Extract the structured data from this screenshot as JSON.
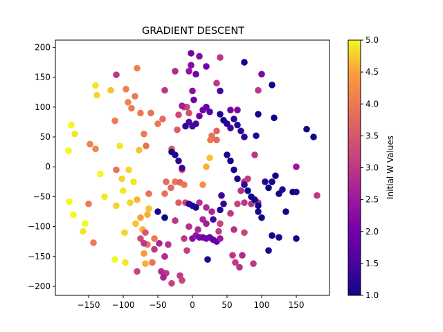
{
  "chart_data": {
    "type": "scatter",
    "title": "GRADIENT DESCENT",
    "xlabel": "",
    "ylabel": "",
    "xlim": [
      -198,
      198
    ],
    "ylim": [
      -215,
      212
    ],
    "xticks": [
      -150,
      -100,
      -50,
      0,
      50,
      100,
      150
    ],
    "xtick_labels": [
      "−150",
      "−100",
      "−50",
      "0",
      "50",
      "100",
      "150"
    ],
    "yticks": [
      -200,
      -150,
      -100,
      -50,
      0,
      50,
      100,
      150,
      200
    ],
    "ytick_labels": [
      "−200",
      "−150",
      "−100",
      "−50",
      "0",
      "50",
      "100",
      "150",
      "200"
    ],
    "grid": false,
    "colormap": "plasma",
    "colorbar": {
      "label": "Initial W Values",
      "range": [
        1.0,
        5.0
      ],
      "ticks": [
        1.0,
        1.5,
        2.0,
        2.5,
        3.0,
        3.5,
        4.0,
        4.5,
        5.0
      ],
      "tick_labels": [
        "1.0",
        "1.5",
        "2.0",
        "2.5",
        "3.0",
        "3.5",
        "4.0",
        "4.5",
        "5.0"
      ]
    },
    "points": [
      [
        -179,
        27,
        5.0
      ],
      [
        -175,
        70,
        5.0
      ],
      [
        -170,
        55,
        4.9
      ],
      [
        -178,
        -58,
        5.0
      ],
      [
        -172,
        -80,
        5.0
      ],
      [
        -158,
        -108,
        4.9
      ],
      [
        -155,
        -95,
        5.0
      ],
      [
        -140,
        136,
        4.9
      ],
      [
        -138,
        120,
        4.8
      ],
      [
        -133,
        -12,
        5.0
      ],
      [
        -127,
        -50,
        4.9
      ],
      [
        -118,
        128,
        4.7
      ],
      [
        -112,
        -155,
        5.0
      ],
      [
        -110,
        -65,
        4.8
      ],
      [
        -105,
        35,
        4.9
      ],
      [
        -102,
        -20,
        4.8
      ],
      [
        -100,
        -40,
        4.9
      ],
      [
        -98,
        -110,
        4.8
      ],
      [
        -97,
        -160,
        4.9
      ],
      [
        -92,
        -5,
        4.8
      ],
      [
        -90,
        -60,
        4.8
      ],
      [
        -85,
        -25,
        4.9
      ],
      [
        -82,
        -95,
        4.7
      ],
      [
        -80,
        -55,
        4.6
      ],
      [
        -75,
        -85,
        4.5
      ],
      [
        -72,
        -105,
        4.6
      ],
      [
        -70,
        -145,
        4.4
      ],
      [
        -68,
        -162,
        4.6
      ],
      [
        -77,
        28,
        4.7
      ],
      [
        -63,
        -70,
        4.7
      ],
      [
        -65,
        -80,
        4.6
      ],
      [
        -148,
        38,
        4.1
      ],
      [
        -140,
        30,
        4.2
      ],
      [
        -150,
        -62,
        4.0
      ],
      [
        -143,
        -127,
        4.0
      ],
      [
        -110,
        -5,
        3.9
      ],
      [
        -112,
        77,
        4.0
      ],
      [
        -96,
        130,
        4.1
      ],
      [
        -93,
        108,
        4.1
      ],
      [
        -88,
        98,
        4.0
      ],
      [
        -83,
        118,
        4.0
      ],
      [
        -80,
        165,
        4.1
      ],
      [
        -75,
        90,
        4.0
      ],
      [
        -70,
        55,
        4.0
      ],
      [
        -67,
        35,
        3.9
      ],
      [
        -63,
        -45,
        3.9
      ],
      [
        -55,
        -120,
        4.0
      ],
      [
        -65,
        -130,
        4.0
      ],
      [
        -58,
        -160,
        3.9
      ],
      [
        -60,
        90,
        3.9
      ],
      [
        -50,
        72,
        4.0
      ],
      [
        -43,
        80,
        3.8
      ],
      [
        -40,
        -45,
        3.9
      ],
      [
        -38,
        -25,
        3.8
      ],
      [
        -31,
        -35,
        3.8
      ],
      [
        -25,
        -25,
        3.9
      ],
      [
        -18,
        -26,
        3.7
      ],
      [
        -12,
        -30,
        4.0
      ],
      [
        -20,
        -60,
        3.6
      ],
      [
        -30,
        30,
        3.6
      ],
      [
        -20,
        87,
        3.3
      ],
      [
        -12,
        100,
        3.3
      ],
      [
        -8,
        100,
        3.2
      ],
      [
        -5,
        90,
        3.4
      ],
      [
        -22,
        62,
        3.6
      ],
      [
        -15,
        -5,
        3.5
      ],
      [
        -10,
        -60,
        3.2
      ],
      [
        -68,
        -110,
        3.5
      ],
      [
        -75,
        -120,
        3.3
      ],
      [
        -70,
        -128,
        3.0
      ],
      [
        -35,
        -130,
        2.9
      ],
      [
        -40,
        -150,
        2.8
      ],
      [
        -55,
        -138,
        3.0
      ],
      [
        -48,
        -128,
        2.7
      ],
      [
        -38,
        -178,
        3.0
      ],
      [
        -30,
        -195,
        3.2
      ],
      [
        -18,
        -182,
        3.1
      ],
      [
        -15,
        -190,
        3.2
      ],
      [
        -8,
        -140,
        3.1
      ],
      [
        -12,
        -120,
        3.0
      ],
      [
        -5,
        -100,
        2.9
      ],
      [
        -25,
        -90,
        3.0
      ],
      [
        -45,
        -175,
        2.8
      ],
      [
        -42,
        -185,
        2.7
      ],
      [
        -80,
        -175,
        3.2
      ],
      [
        -110,
        154,
        3.0
      ],
      [
        -40,
        128,
        3.0
      ],
      [
        -25,
        160,
        2.8
      ],
      [
        -15,
        102,
        2.6
      ],
      [
        10,
        -60,
        2.9
      ],
      [
        20,
        -68,
        2.8
      ],
      [
        28,
        -75,
        2.7
      ],
      [
        15,
        -88,
        2.7
      ],
      [
        20,
        -95,
        2.6
      ],
      [
        8,
        -105,
        2.8
      ],
      [
        0,
        -120,
        2.2
      ],
      [
        5,
        -115,
        2.4
      ],
      [
        10,
        -118,
        2.1
      ],
      [
        15,
        -118,
        2.0
      ],
      [
        20,
        -120,
        2.0
      ],
      [
        25,
        -118,
        1.9
      ],
      [
        30,
        -122,
        1.8
      ],
      [
        35,
        -125,
        1.8
      ],
      [
        40,
        -120,
        2.5
      ],
      [
        20,
        0,
        4.6
      ],
      [
        25,
        15,
        4.7
      ],
      [
        15,
        -30,
        4.3
      ],
      [
        26,
        45,
        4.0
      ],
      [
        28,
        52,
        3.9
      ],
      [
        35,
        60,
        3.7
      ],
      [
        35,
        45,
        3.8
      ],
      [
        40,
        183,
        3.0
      ],
      [
        35,
        140,
        3.0
      ],
      [
        40,
        -95,
        3.2
      ],
      [
        38,
        -108,
        3.1
      ],
      [
        58,
        -148,
        3.0
      ],
      [
        62,
        -160,
        3.1
      ],
      [
        68,
        -168,
        2.9
      ],
      [
        72,
        -148,
        2.8
      ],
      [
        88,
        -162,
        3.0
      ],
      [
        75,
        -110,
        3.2
      ],
      [
        60,
        -105,
        2.9
      ],
      [
        55,
        -78,
        3.0
      ],
      [
        65,
        -62,
        3.2
      ],
      [
        75,
        -60,
        3.0
      ],
      [
        85,
        -62,
        2.9
      ],
      [
        95,
        -60,
        2.8
      ],
      [
        70,
        -40,
        2.9
      ],
      [
        75,
        -25,
        2.8
      ],
      [
        80,
        -20,
        3.1
      ],
      [
        90,
        20,
        3.0
      ],
      [
        95,
        128,
        3.0
      ],
      [
        100,
        155,
        2.1
      ],
      [
        65,
        95,
        2.1
      ],
      [
        55,
        95,
        2.0
      ],
      [
        180,
        -48,
        3.0
      ],
      [
        150,
        0,
        2.5
      ],
      [
        -2,
        190,
        2.0
      ],
      [
        10,
        185,
        2.2
      ],
      [
        20,
        168,
        2.0
      ],
      [
        -2,
        170,
        2.2
      ],
      [
        -5,
        160,
        2.4
      ],
      [
        5,
        155,
        2.0
      ],
      [
        0,
        127,
        2.3
      ],
      [
        2,
        112,
        2.0
      ],
      [
        10,
        85,
        2.0
      ],
      [
        15,
        95,
        1.9
      ],
      [
        20,
        100,
        1.8
      ],
      [
        25,
        92,
        1.7
      ],
      [
        -5,
        75,
        1.6
      ],
      [
        0,
        68,
        1.4
      ],
      [
        -10,
        68,
        1.3
      ],
      [
        5,
        72,
        1.5
      ],
      [
        -30,
        25,
        1.1
      ],
      [
        -25,
        20,
        1.2
      ],
      [
        -20,
        10,
        1.3
      ],
      [
        -15,
        -2,
        1.4
      ],
      [
        -50,
        -75,
        1.1
      ],
      [
        -40,
        -85,
        1.0
      ],
      [
        -5,
        -62,
        1.3
      ],
      [
        0,
        -65,
        1.2
      ],
      [
        5,
        -68,
        1.1
      ],
      [
        42,
        -48,
        1.4
      ],
      [
        45,
        -62,
        1.3
      ],
      [
        40,
        -72,
        1.2
      ],
      [
        30,
        -88,
        1.5
      ],
      [
        40,
        127,
        1.5
      ],
      [
        40,
        88,
        1.2
      ],
      [
        45,
        78,
        1.1
      ],
      [
        50,
        72,
        1.2
      ],
      [
        55,
        65,
        1.4
      ],
      [
        60,
        80,
        1.3
      ],
      [
        65,
        70,
        1.2
      ],
      [
        70,
        60,
        1.3
      ],
      [
        75,
        50,
        1.2
      ],
      [
        50,
        20,
        1.1
      ],
      [
        55,
        10,
        1.0
      ],
      [
        60,
        -5,
        1.1
      ],
      [
        65,
        -20,
        1.1
      ],
      [
        75,
        -30,
        1.3
      ],
      [
        80,
        -40,
        1.0
      ],
      [
        85,
        -50,
        1.0
      ],
      [
        90,
        -55,
        1.0
      ],
      [
        95,
        -65,
        1.0
      ],
      [
        95,
        -75,
        1.1
      ],
      [
        100,
        -85,
        1.0
      ],
      [
        105,
        -25,
        1.2
      ],
      [
        110,
        -35,
        1.0
      ],
      [
        115,
        -25,
        1.1
      ],
      [
        120,
        -15,
        1.0
      ],
      [
        125,
        -45,
        1.0
      ],
      [
        130,
        -38,
        1.1
      ],
      [
        145,
        -42,
        1.0
      ],
      [
        150,
        -42,
        1.1
      ],
      [
        135,
        -75,
        1.0
      ],
      [
        115,
        -115,
        1.0
      ],
      [
        125,
        -118,
        1.1
      ],
      [
        110,
        -140,
        1.1
      ],
      [
        150,
        -120,
        1.0
      ],
      [
        75,
        175,
        1.0
      ],
      [
        115,
        137,
        1.0
      ],
      [
        118,
        82,
        1.0
      ],
      [
        165,
        63,
        1.0
      ],
      [
        175,
        50,
        1.0
      ],
      [
        95,
        88,
        1.0
      ],
      [
        92,
        52,
        1.1
      ],
      [
        22,
        -155,
        1.2
      ]
    ]
  }
}
